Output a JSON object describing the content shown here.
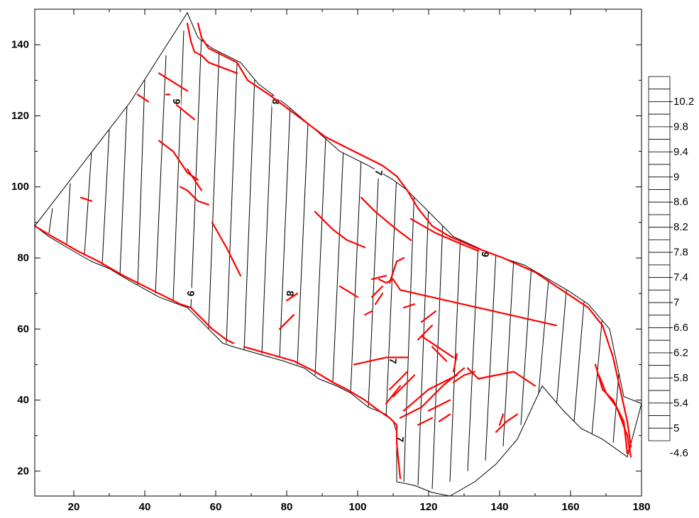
{
  "chart_data": {
    "type": "contour",
    "xlim": [
      9,
      180
    ],
    "ylim": [
      13,
      150
    ],
    "x_ticks": [
      20,
      40,
      60,
      80,
      100,
      120,
      140,
      160,
      180
    ],
    "y_ticks": [
      20,
      40,
      60,
      80,
      100,
      120,
      140
    ],
    "x_tick_labels": [
      "20",
      "40",
      "60",
      "80",
      "100",
      "120",
      "140",
      "160",
      "180"
    ],
    "y_tick_labels": [
      "20",
      "40",
      "60",
      "80",
      "100",
      "120",
      "140"
    ],
    "boundary": [
      [
        9,
        89
      ],
      [
        13,
        86
      ],
      [
        18,
        83
      ],
      [
        25,
        79
      ],
      [
        30,
        77
      ],
      [
        35,
        74
      ],
      [
        44,
        69
      ],
      [
        52,
        66
      ],
      [
        58,
        60
      ],
      [
        62,
        56
      ],
      [
        65,
        55
      ],
      [
        72,
        53
      ],
      [
        79,
        51
      ],
      [
        85,
        49
      ],
      [
        89,
        46
      ],
      [
        94,
        44
      ],
      [
        98,
        42
      ],
      [
        103,
        38
      ],
      [
        108,
        36
      ],
      [
        110,
        34
      ],
      [
        111,
        31
      ],
      [
        111,
        17
      ],
      [
        116,
        16
      ],
      [
        121,
        14
      ],
      [
        126,
        13
      ],
      [
        133,
        17
      ],
      [
        139,
        22
      ],
      [
        145,
        29
      ],
      [
        152,
        44
      ],
      [
        158,
        37
      ],
      [
        163,
        32
      ],
      [
        169,
        29
      ],
      [
        176,
        24
      ],
      [
        180,
        39
      ],
      [
        175,
        41
      ],
      [
        171,
        60
      ],
      [
        165,
        67
      ],
      [
        159,
        71
      ],
      [
        147,
        78
      ],
      [
        138,
        81
      ],
      [
        127,
        86
      ],
      [
        122,
        91
      ],
      [
        114,
        99
      ],
      [
        110,
        102
      ],
      [
        103,
        106
      ],
      [
        95,
        110
      ],
      [
        87,
        117
      ],
      [
        80,
        123
      ],
      [
        72,
        129
      ],
      [
        67,
        135
      ],
      [
        59,
        139
      ],
      [
        55,
        142
      ],
      [
        52,
        149
      ],
      [
        36,
        124
      ],
      [
        9,
        89
      ]
    ],
    "contours": [
      {
        "x0": 13,
        "y0": 87,
        "x1": 14,
        "y1": 94
      },
      {
        "x0": 18,
        "y0": 84,
        "x1": 19,
        "y1": 101
      },
      {
        "x0": 23,
        "y0": 81,
        "x1": 25,
        "y1": 110
      },
      {
        "x0": 28,
        "y0": 78,
        "x1": 30,
        "y1": 116
      },
      {
        "x0": 33,
        "y0": 75,
        "x1": 35,
        "y1": 123
      },
      {
        "x0": 38,
        "y0": 72,
        "x1": 40,
        "y1": 130
      },
      {
        "x0": 43,
        "y0": 70,
        "x1": 46,
        "y1": 137
      },
      {
        "x0": 48,
        "y0": 68,
        "x1": 51,
        "y1": 144
      },
      {
        "x0": 53,
        "y0": 66,
        "x1": 56,
        "y1": 143
      },
      {
        "x0": 58,
        "y0": 60,
        "x1": 61,
        "y1": 139
      },
      {
        "x0": 63,
        "y0": 56,
        "x1": 66,
        "y1": 135
      },
      {
        "x0": 68,
        "y0": 54,
        "x1": 71,
        "y1": 131
      },
      {
        "x0": 73,
        "y0": 53,
        "x1": 76,
        "y1": 127
      },
      {
        "x0": 78,
        "y0": 52,
        "x1": 81,
        "y1": 123
      },
      {
        "x0": 83,
        "y0": 50,
        "x1": 86,
        "y1": 118
      },
      {
        "x0": 88,
        "y0": 47,
        "x1": 91,
        "y1": 114
      },
      {
        "x0": 93,
        "y0": 45,
        "x1": 96,
        "y1": 111
      },
      {
        "x0": 98,
        "y0": 42,
        "x1": 101,
        "y1": 108
      },
      {
        "x0": 103,
        "y0": 38,
        "x1": 106,
        "y1": 106
      },
      {
        "x0": 108,
        "y0": 35,
        "x1": 111,
        "y1": 104
      },
      {
        "x0": 113,
        "y0": 17,
        "x1": 116,
        "y1": 100
      },
      {
        "x0": 117,
        "y0": 16,
        "x1": 120,
        "y1": 95
      },
      {
        "x0": 121,
        "y0": 15,
        "x1": 124,
        "y1": 90
      },
      {
        "x0": 126,
        "y0": 17,
        "x1": 129,
        "y1": 87
      },
      {
        "x0": 131,
        "y0": 20,
        "x1": 134,
        "y1": 84
      },
      {
        "x0": 136,
        "y0": 23,
        "x1": 139,
        "y1": 82
      },
      {
        "x0": 141,
        "y0": 27,
        "x1": 144,
        "y1": 80
      },
      {
        "x0": 146,
        "y0": 33,
        "x1": 149,
        "y1": 78
      },
      {
        "x0": 151,
        "y0": 42,
        "x1": 154,
        "y1": 76
      },
      {
        "x0": 156,
        "y0": 38,
        "x1": 159,
        "y1": 73
      },
      {
        "x0": 161,
        "y0": 34,
        "x1": 164,
        "y1": 70
      },
      {
        "x0": 166,
        "y0": 30,
        "x1": 169,
        "y1": 64
      },
      {
        "x0": 172,
        "y0": 28,
        "x1": 174,
        "y1": 52
      }
    ],
    "contour_labels": [
      {
        "text": "9",
        "x": 49,
        "y": 124,
        "rotate": 95
      },
      {
        "text": "8",
        "x": 77,
        "y": 124,
        "rotate": 95
      },
      {
        "text": "7",
        "x": 106,
        "y": 104,
        "rotate": 95
      },
      {
        "text": "9",
        "x": 136,
        "y": 81,
        "rotate": 95
      },
      {
        "text": "9",
        "x": 53,
        "y": 70,
        "rotate": 95
      },
      {
        "text": "8",
        "x": 81,
        "y": 70,
        "rotate": 95
      },
      {
        "text": "7",
        "x": 110,
        "y": 51,
        "rotate": 95
      },
      {
        "text": "7",
        "x": 112,
        "y": 29,
        "rotate": 95
      }
    ],
    "faults": [
      [
        [
          52,
          146
        ],
        [
          53,
          141
        ],
        [
          54,
          138
        ],
        [
          56,
          137
        ],
        [
          58,
          135
        ],
        [
          66,
          132
        ]
      ],
      [
        [
          55,
          146
        ],
        [
          56,
          142
        ],
        [
          58,
          139
        ],
        [
          66,
          135
        ],
        [
          69,
          130
        ],
        [
          75,
          126
        ],
        [
          83,
          120
        ],
        [
          91,
          114
        ],
        [
          95,
          112
        ],
        [
          101,
          109
        ],
        [
          107,
          106
        ],
        [
          111,
          103
        ],
        [
          114,
          99
        ],
        [
          117,
          94
        ],
        [
          121,
          89
        ],
        [
          126,
          86
        ],
        [
          133,
          83
        ],
        [
          141,
          80
        ],
        [
          150,
          76
        ],
        [
          159,
          70
        ],
        [
          165,
          66
        ],
        [
          169,
          61
        ],
        [
          172,
          52
        ],
        [
          174,
          43
        ],
        [
          176,
          34
        ],
        [
          177,
          27
        ],
        [
          176,
          25
        ]
      ],
      [
        [
          9,
          89
        ],
        [
          14,
          86
        ],
        [
          21,
          82
        ],
        [
          27,
          79
        ],
        [
          34,
          75
        ],
        [
          42,
          71
        ],
        [
          50,
          67
        ],
        [
          53,
          66
        ],
        [
          56,
          63
        ],
        [
          59,
          60
        ],
        [
          63,
          57
        ],
        [
          65,
          56
        ]
      ],
      [
        [
          68,
          55
        ],
        [
          75,
          53
        ],
        [
          82,
          51
        ],
        [
          88,
          48
        ],
        [
          93,
          45
        ],
        [
          97,
          43
        ],
        [
          102,
          40
        ],
        [
          106,
          37
        ],
        [
          109,
          35
        ],
        [
          111,
          33
        ],
        [
          111,
          28
        ],
        [
          112,
          18
        ]
      ],
      [
        [
          44,
          132
        ],
        [
          52,
          127
        ]
      ],
      [
        [
          38,
          126
        ],
        [
          41,
          124
        ]
      ],
      [
        [
          46,
          126
        ],
        [
          47,
          126
        ]
      ],
      [
        [
          49,
          123
        ],
        [
          54,
          119
        ]
      ],
      [
        [
          44,
          113
        ],
        [
          48,
          110
        ],
        [
          52,
          104
        ],
        [
          55,
          102
        ]
      ],
      [
        [
          52,
          105
        ],
        [
          56,
          99
        ]
      ],
      [
        [
          50,
          100
        ],
        [
          52,
          99
        ],
        [
          54,
          97
        ],
        [
          55,
          96
        ],
        [
          58,
          95
        ]
      ],
      [
        [
          22,
          97
        ],
        [
          25,
          96
        ]
      ],
      [
        [
          59,
          90
        ],
        [
          63,
          83
        ],
        [
          67,
          75
        ]
      ],
      [
        [
          88,
          93
        ],
        [
          91,
          90
        ],
        [
          93,
          88
        ],
        [
          97,
          85
        ],
        [
          102,
          83
        ]
      ],
      [
        [
          101,
          97
        ],
        [
          105,
          93
        ],
        [
          111,
          88
        ],
        [
          115,
          85
        ]
      ],
      [
        [
          115,
          91
        ],
        [
          122,
          87
        ],
        [
          129,
          84
        ],
        [
          134,
          82
        ]
      ],
      [
        [
          106,
          74
        ],
        [
          108,
          73
        ],
        [
          110,
          74
        ],
        [
          112,
          71
        ],
        [
          156,
          61
        ]
      ],
      [
        [
          109,
          73
        ],
        [
          110,
          76
        ],
        [
          111,
          79
        ],
        [
          113,
          80
        ]
      ],
      [
        [
          104,
          74
        ],
        [
          108,
          75
        ]
      ],
      [
        [
          95,
          72
        ],
        [
          100,
          69
        ]
      ],
      [
        [
          104,
          69
        ],
        [
          107,
          72
        ]
      ],
      [
        [
          107,
          70
        ],
        [
          105,
          67
        ]
      ],
      [
        [
          102,
          64
        ],
        [
          104,
          65
        ]
      ],
      [
        [
          113,
          66
        ],
        [
          116,
          67
        ]
      ],
      [
        [
          121,
          61
        ],
        [
          117,
          57
        ]
      ],
      [
        [
          122,
          65
        ],
        [
          118,
          62
        ]
      ],
      [
        [
          99,
          50
        ],
        [
          108,
          52
        ],
        [
          114,
          52
        ]
      ],
      [
        [
          109,
          43
        ],
        [
          114,
          48
        ]
      ],
      [
        [
          110,
          41
        ],
        [
          116,
          47
        ]
      ],
      [
        [
          108,
          39
        ],
        [
          112,
          44
        ]
      ],
      [
        [
          112,
          35
        ],
        [
          118,
          38
        ],
        [
          124,
          44
        ],
        [
          130,
          49
        ]
      ],
      [
        [
          113,
          37
        ],
        [
          120,
          43
        ],
        [
          128,
          47
        ]
      ],
      [
        [
          117,
          33
        ],
        [
          121,
          35
        ]
      ],
      [
        [
          120,
          37
        ],
        [
          126,
          40
        ]
      ],
      [
        [
          123,
          34
        ],
        [
          126,
          36
        ]
      ],
      [
        [
          127,
          45
        ],
        [
          130,
          47
        ],
        [
          133,
          48
        ]
      ],
      [
        [
          127,
          48
        ],
        [
          128,
          53
        ]
      ],
      [
        [
          131,
          49
        ],
        [
          134,
          46
        ],
        [
          144,
          48
        ],
        [
          150,
          44
        ]
      ],
      [
        [
          139,
          31
        ],
        [
          142,
          34
        ],
        [
          145,
          36
        ]
      ],
      [
        [
          140,
          33
        ],
        [
          141,
          36
        ]
      ],
      [
        [
          121,
          55
        ],
        [
          125,
          51
        ]
      ],
      [
        [
          118,
          58
        ],
        [
          124,
          54
        ],
        [
          127,
          52
        ]
      ],
      [
        [
          167,
          50
        ],
        [
          169,
          43
        ],
        [
          172,
          40
        ],
        [
          175,
          34
        ],
        [
          176,
          25
        ]
      ],
      [
        [
          168,
          47
        ],
        [
          170,
          42
        ],
        [
          173,
          38
        ],
        [
          176,
          30
        ],
        [
          177,
          24
        ]
      ],
      [
        [
          80,
          68
        ],
        [
          83,
          70
        ]
      ],
      [
        [
          78,
          60
        ],
        [
          82,
          64
        ]
      ]
    ],
    "legend": {
      "levels": [
        "10.2",
        "9.8",
        "9.4",
        "9",
        "8.6",
        "8.2",
        "7.8",
        "7.4",
        "7",
        "6.6",
        "6.2",
        "5.8",
        "5.4",
        "5",
        "4.6"
      ]
    },
    "colors": {
      "fault": "#ff0000",
      "contour": "#000000",
      "frame": "#000000"
    },
    "grid": false,
    "legend_position": "right"
  }
}
